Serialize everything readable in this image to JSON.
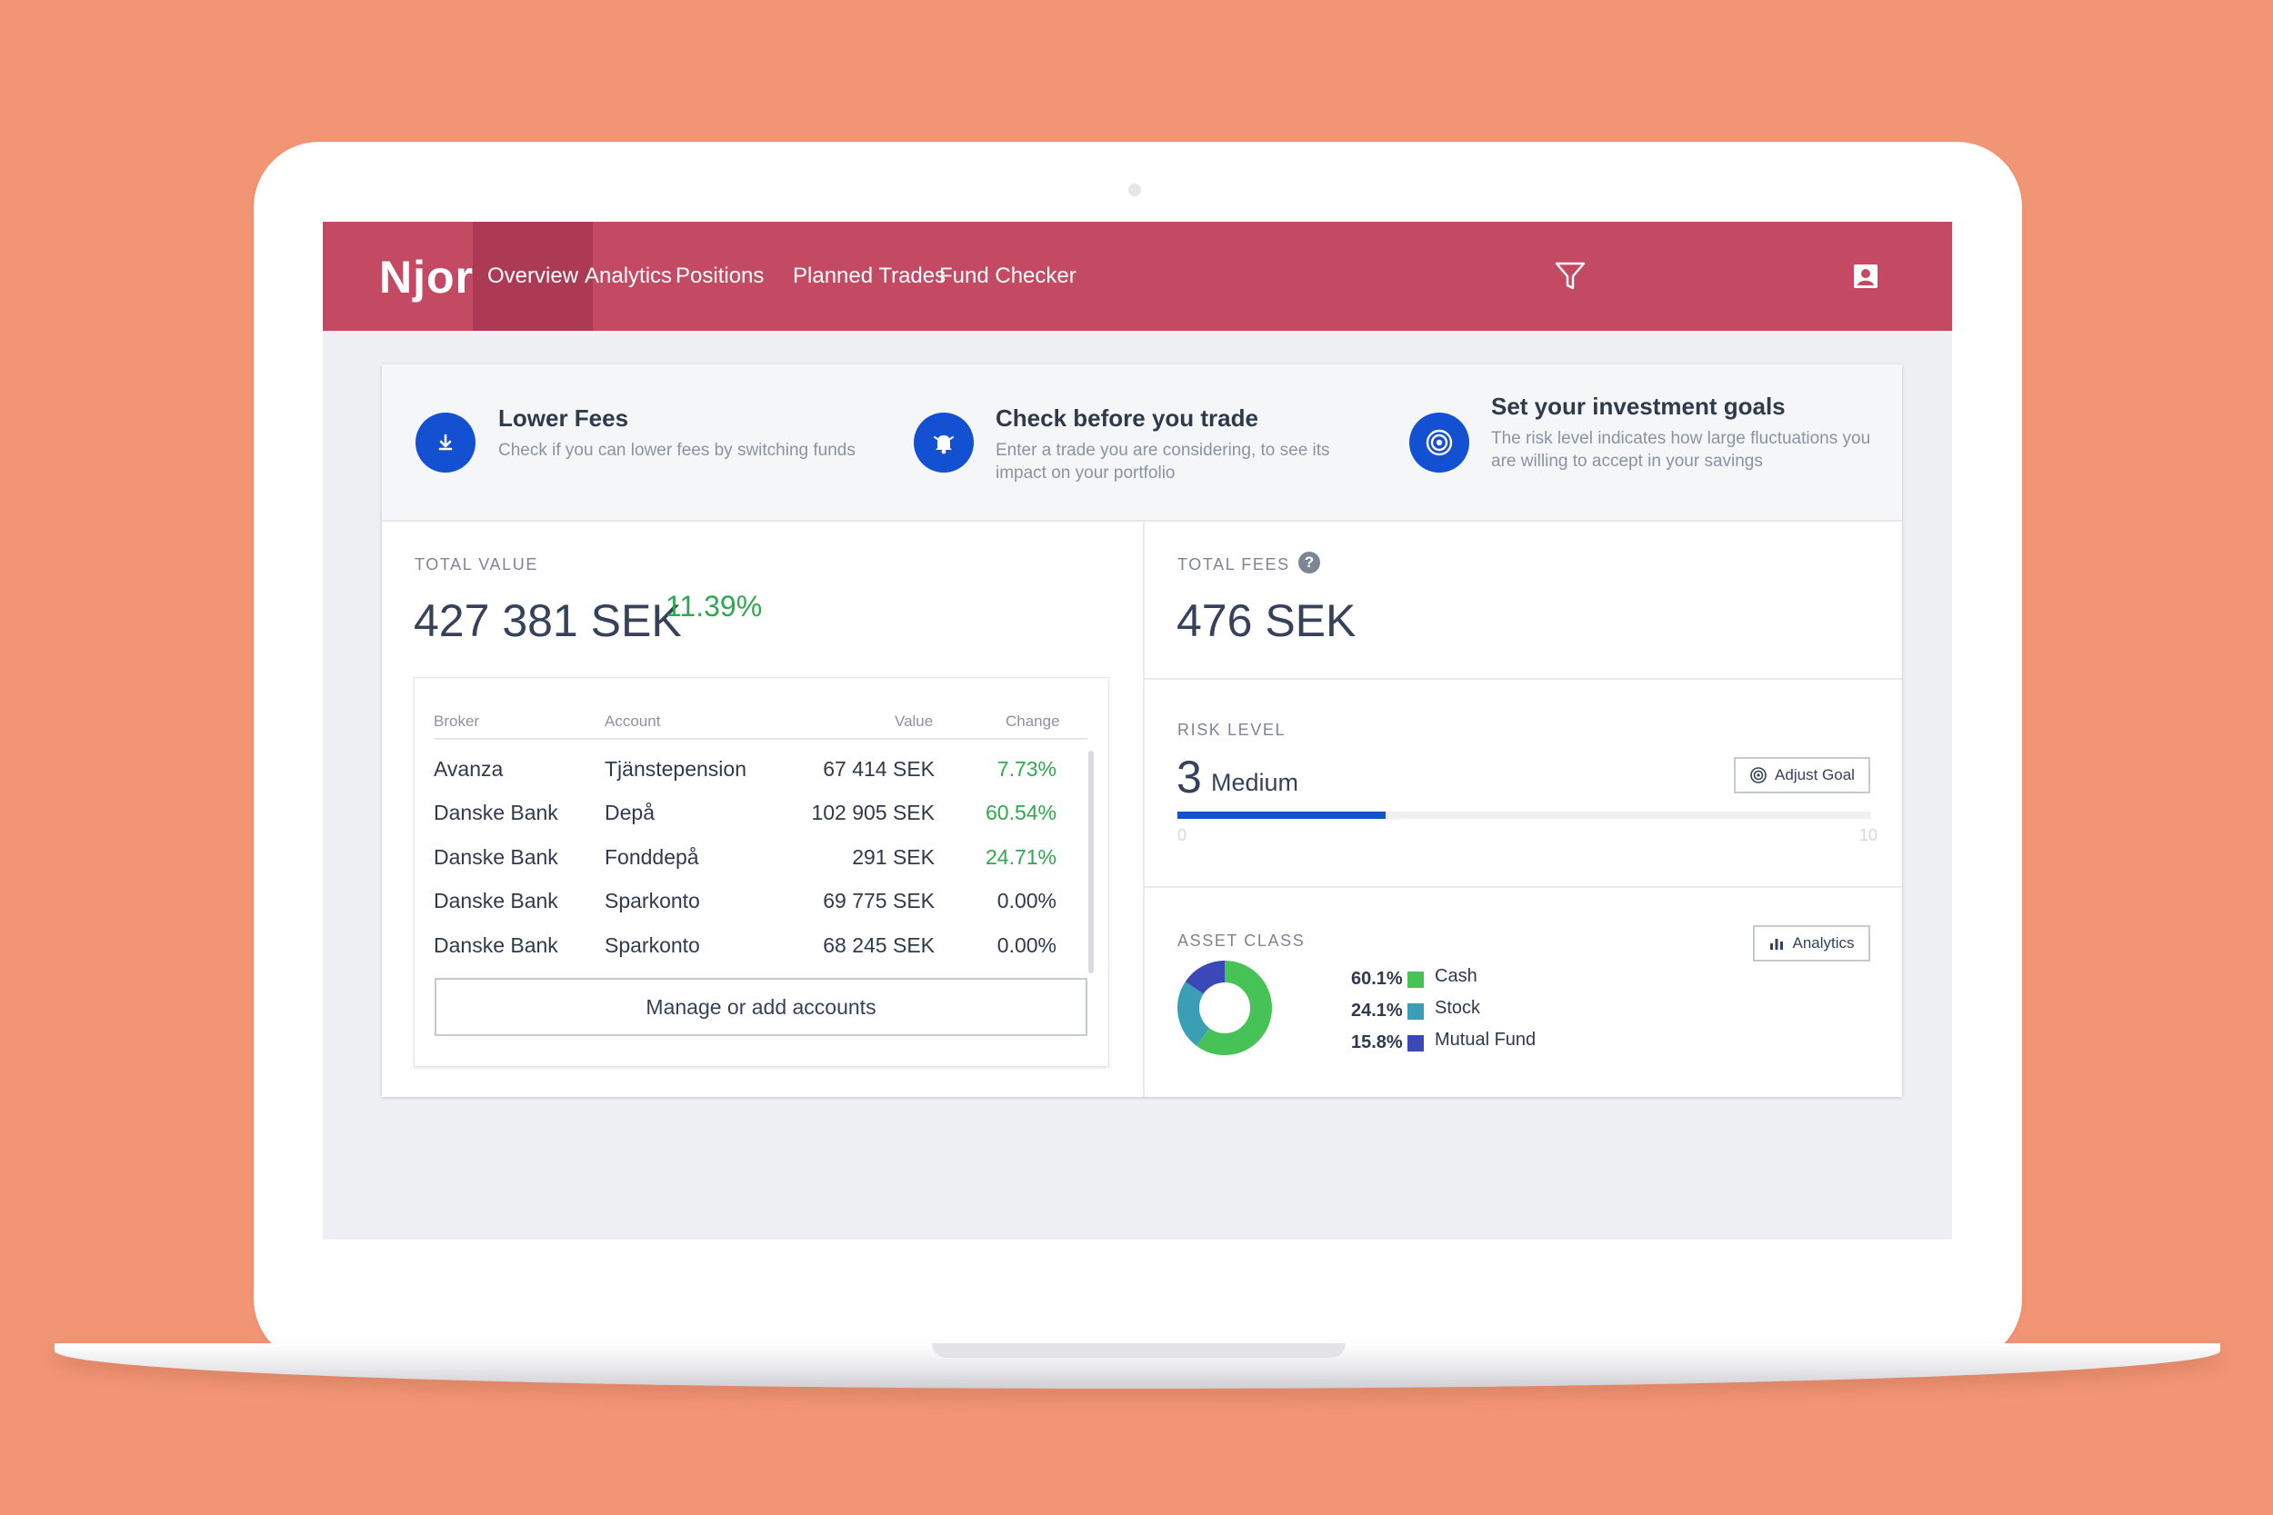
{
  "app": {
    "logo": "Njorda"
  },
  "nav": {
    "items": [
      {
        "label": "Overview",
        "active": true
      },
      {
        "label": "Analytics"
      },
      {
        "label": "Positions"
      },
      {
        "label": "Planned Trades"
      },
      {
        "label": "Fund Checker"
      }
    ],
    "icons": [
      "filter-icon",
      "user-profile-icon"
    ]
  },
  "tips": [
    {
      "title": "Lower Fees",
      "description": "Check if you can lower fees by switching funds",
      "icon": "download-icon"
    },
    {
      "title": "Check before you trade",
      "description": "Enter a trade you are considering, to see its impact on your portfolio",
      "icon": "bell-icon"
    },
    {
      "title": "Set your investment goals",
      "description": "The risk level indicates how large fluctuations you are willing to accept in your savings",
      "icon": "target-icon"
    }
  ],
  "total_value": {
    "label": "TOTAL VALUE",
    "amount": "427 381 SEK",
    "change": "11.39%"
  },
  "accounts": {
    "headers": {
      "broker": "Broker",
      "account": "Account",
      "value": "Value",
      "change": "Change"
    },
    "rows": [
      {
        "broker": "Avanza",
        "account": "Tjänstepension",
        "value": "67 414 SEK",
        "change": "7.73%",
        "positive": true
      },
      {
        "broker": "Danske Bank",
        "account": "Depå",
        "value": "102 905 SEK",
        "change": "60.54%",
        "positive": true
      },
      {
        "broker": "Danske Bank",
        "account": "Fonddepå",
        "value": "291 SEK",
        "change": "24.71%",
        "positive": true
      },
      {
        "broker": "Danske Bank",
        "account": "Sparkonto",
        "value": "69 775 SEK",
        "change": "0.00%",
        "positive": false
      },
      {
        "broker": "Danske Bank",
        "account": "Sparkonto",
        "value": "68 245 SEK",
        "change": "0.00%",
        "positive": false
      }
    ],
    "manage_button": "Manage or add accounts"
  },
  "total_fees": {
    "label": "TOTAL FEES",
    "amount": "476 SEK",
    "help": "?"
  },
  "risk": {
    "label": "RISK LEVEL",
    "level": "3",
    "level_name": "Medium",
    "min": "0",
    "max": "10",
    "fill_fraction": 0.3,
    "button": "Adjust Goal",
    "color": "#1450d2"
  },
  "asset_class": {
    "label": "ASSET CLASS",
    "button": "Analytics",
    "segments": [
      {
        "pct": "60.1%",
        "value": 60.1,
        "name": "Cash",
        "color": "#46c256"
      },
      {
        "pct": "24.1%",
        "value": 24.1,
        "name": "Stock",
        "color": "#3a9fb5"
      },
      {
        "pct": "15.8%",
        "value": 15.8,
        "name": "Mutual Fund",
        "color": "#3a48b8"
      }
    ]
  },
  "colors": {
    "brand": "#c44a64",
    "brand_active": "#ad3a54",
    "accent": "#1450d2",
    "positive": "#2fa84f",
    "background": "#f29574"
  }
}
